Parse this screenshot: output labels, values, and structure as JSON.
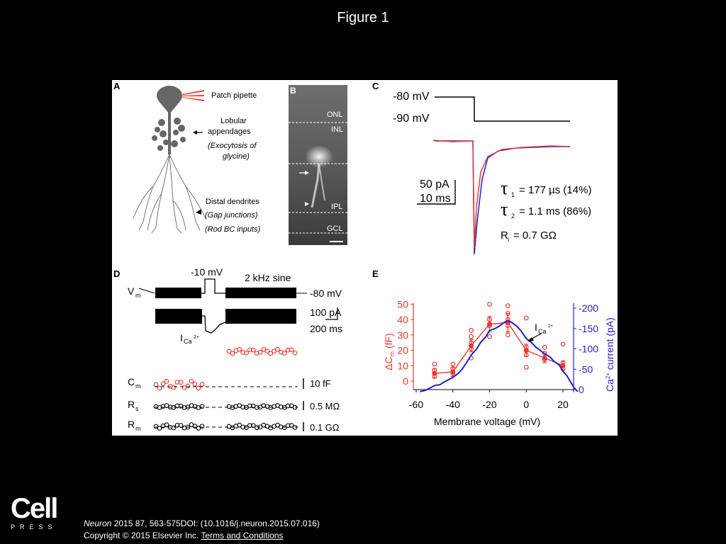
{
  "slide_title": "Figure 1",
  "panels": {
    "a": {
      "letter": "A",
      "labels": [
        "Patch pipette",
        "Lobular",
        "appendages",
        "(Exocytosis of",
        "glycine)",
        "Distal dendrites",
        "(Gap junctions)",
        "(Rod BC inputs)"
      ]
    },
    "b": {
      "letter": "B",
      "layers": [
        "ONL",
        "INL",
        "IPL",
        "GCL"
      ]
    },
    "c": {
      "letter": "C",
      "v_hold": "-80 mV",
      "v_step": "-90 mV",
      "scale_current": "50 pA",
      "scale_time": "10 ms",
      "tau1_sub": "1",
      "tau1_text": "= 177 µs  (14%)",
      "tau2_sub": "2",
      "tau2_text": "= 1.1 ms  (86%)",
      "ri_main": "R",
      "ri_sub": "i",
      "ri_text": "= 0.7 GΩ"
    },
    "d": {
      "letter": "D",
      "step_voltage": "-10 mV",
      "sine_label": "2 kHz sine",
      "vm_main": "V",
      "vm_sub": "m",
      "hold_label": "-80 mV",
      "ica_main": "I",
      "ica_sub": "Ca",
      "ica_sup": "2+",
      "scale_current": "100 pA",
      "scale_time": "200 ms",
      "cm_main": "C",
      "cm_sub": "m",
      "rs_main": "R",
      "rs_sub": "s",
      "rm_main": "R",
      "rm_sub": "m",
      "cm_scale": "10 fF",
      "rs_scale": "0.5 MΩ",
      "rm_scale": "0.1 GΩ"
    },
    "e": {
      "letter": "E",
      "ica_label_main": "I",
      "ica_label_sub": "Ca",
      "ica_label_sup": "2+",
      "ylabel_left": "ΔC",
      "ylabel_left_sub": "m",
      "ylabel_left_unit": " (fF)",
      "ylabel_right_prefix": "Ca",
      "ylabel_right_sup": "2+",
      "ylabel_right_suffix": " current (pA)",
      "xlabel": "Membrane voltage (mV)"
    }
  },
  "chart_data": {
    "type": "line",
    "xlabel": "Membrane voltage (mV)",
    "x_ticks": [
      "-60",
      "-40",
      "-20",
      "0",
      "20"
    ],
    "xlim": [
      -60,
      25
    ],
    "y_left": {
      "label": "ΔCm (fF)",
      "ticks": [
        "0",
        "10",
        "20",
        "30",
        "40",
        "50"
      ],
      "lim": [
        -5,
        50
      ],
      "color": "#e8382d"
    },
    "y_right": {
      "label": "Ca2+ current (pA)",
      "ticks": [
        "0",
        "-50",
        "-100",
        "-150",
        "-200"
      ],
      "lim": [
        10,
        -200
      ],
      "color": "#1f1fd1"
    },
    "series": [
      {
        "axis": "left",
        "color": "#e8382d",
        "kind": "mean-with-error",
        "x": [
          -50,
          -40,
          -30,
          -20,
          -10,
          0,
          10,
          20
        ],
        "y": [
          5,
          6,
          23,
          37,
          38,
          20,
          15,
          10
        ],
        "err": [
          3,
          3,
          4,
          5,
          6,
          4,
          3,
          3
        ]
      },
      {
        "axis": "left",
        "color": "#e8382d",
        "kind": "individual-points",
        "x": [
          -50,
          -50,
          -50,
          -40,
          -40,
          -40,
          -30,
          -30,
          -30,
          -30,
          -30,
          -20,
          -20,
          -20,
          -20,
          -10,
          -10,
          -10,
          -10,
          -10,
          0,
          0,
          0,
          0,
          10,
          10,
          10,
          20,
          20,
          20
        ],
        "y": [
          11,
          7,
          3,
          11,
          8,
          5,
          33,
          29,
          25,
          21,
          15,
          50,
          40,
          36,
          29,
          49,
          44,
          40,
          36,
          30,
          41,
          22,
          17,
          9,
          22,
          18,
          14,
          24,
          12,
          8
        ]
      },
      {
        "axis": "right",
        "color": "#1f1fd1",
        "kind": "trace",
        "x": [
          -58,
          -55,
          -52,
          -50,
          -47,
          -45,
          -42,
          -40,
          -37,
          -35,
          -32,
          -30,
          -27,
          -25,
          -22,
          -20,
          -17,
          -15,
          -12,
          -10,
          -8,
          -5,
          -3,
          0,
          3,
          5,
          8,
          10,
          13,
          15,
          18,
          20,
          22,
          24,
          26,
          28
        ],
        "y": [
          5,
          2,
          -5,
          -10,
          -12,
          -18,
          -25,
          -30,
          -40,
          -50,
          -70,
          -85,
          -100,
          -115,
          -130,
          -145,
          -150,
          -155,
          -165,
          -170,
          -165,
          -155,
          -145,
          -125,
          -115,
          -105,
          -95,
          -88,
          -80,
          -70,
          -60,
          -45,
          -35,
          -20,
          -5,
          5
        ]
      }
    ]
  }
}
